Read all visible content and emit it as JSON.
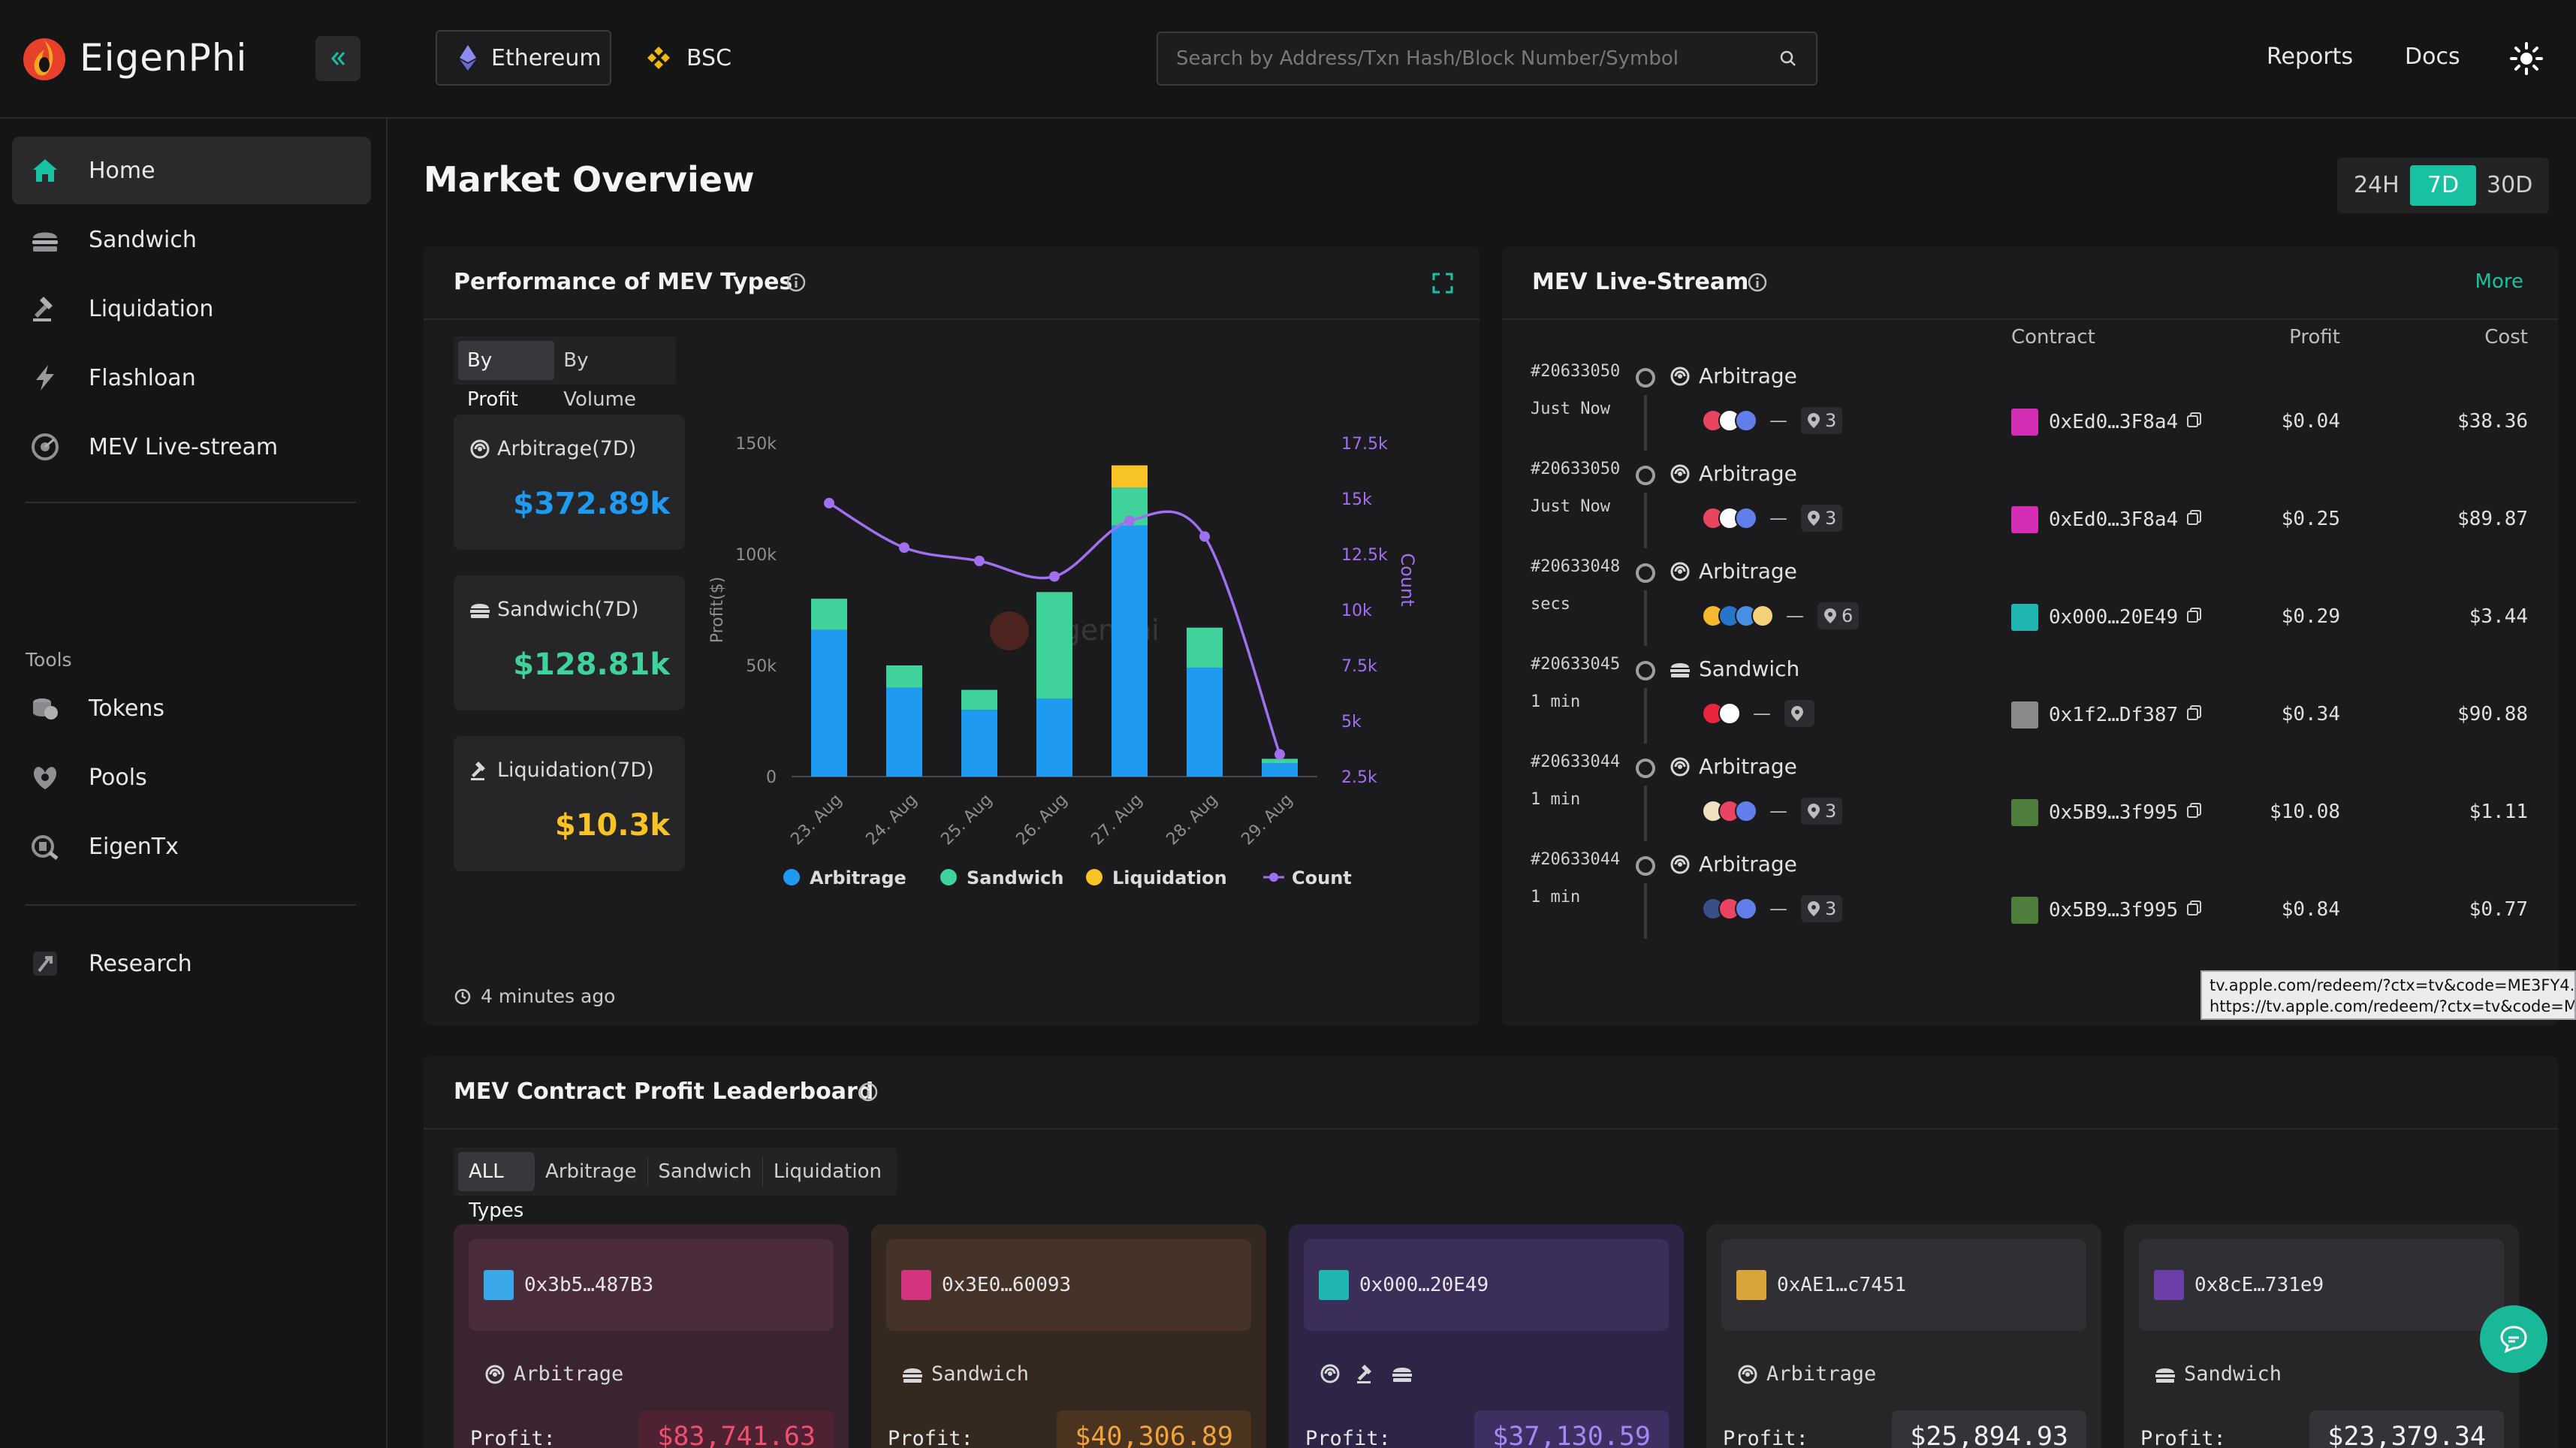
{
  "brand": {
    "name": "EigenPhi"
  },
  "header": {
    "chains": [
      {
        "label": "Ethereum"
      },
      {
        "label": "BSC"
      }
    ],
    "search_placeholder": "Search by Address/Txn Hash/Block Number/Symbol",
    "links": {
      "reports": "Reports",
      "docs": "Docs"
    }
  },
  "sidebar": {
    "items": [
      {
        "label": "Home",
        "icon": "home-icon"
      },
      {
        "label": "Sandwich",
        "icon": "sandwich-icon"
      },
      {
        "label": "Liquidation",
        "icon": "gavel-icon"
      },
      {
        "label": "Flashloan",
        "icon": "flash-icon"
      },
      {
        "label": "MEV Live-stream",
        "icon": "radar-icon"
      }
    ],
    "tools_label": "Tools",
    "tools": [
      {
        "label": "Tokens",
        "icon": "coins-icon"
      },
      {
        "label": "Pools",
        "icon": "pools-icon"
      },
      {
        "label": "EigenTx",
        "icon": "eigentx-icon"
      }
    ],
    "research": {
      "label": "Research",
      "icon": "research-icon"
    }
  },
  "main": {
    "title": "Market Overview",
    "ranges": [
      "24H",
      "7D",
      "30D"
    ],
    "active_range": "7D"
  },
  "performance": {
    "title": "Performance of MEV Types",
    "tabs": [
      "By Profit",
      "By Volume"
    ],
    "stats": [
      {
        "label": "Arbitrage(7D)",
        "value": "$372.89k",
        "color": "#1e9bf0"
      },
      {
        "label": "Sandwich(7D)",
        "value": "$128.81k",
        "color": "#3fd39b"
      },
      {
        "label": "Liquidation(7D)",
        "value": "$10.3k",
        "color": "#f7c325"
      }
    ],
    "updated": "4 minutes ago"
  },
  "chart_data": {
    "type": "bar",
    "stacked": true,
    "categories": [
      "23. Aug",
      "24. Aug",
      "25. Aug",
      "26. Aug",
      "27. Aug",
      "28. Aug",
      "29. Aug"
    ],
    "ylabel": "Profit($)",
    "ylim": [
      0,
      150000
    ],
    "yticks": [
      "0",
      "50k",
      "100k",
      "150k"
    ],
    "y2label": "Count",
    "y2lim": [
      2500,
      17500
    ],
    "y2ticks": [
      "2.5k",
      "5k",
      "7.5k",
      "10k",
      "12.5k",
      "15k",
      "17.5k"
    ],
    "series": [
      {
        "name": "Arbitrage",
        "color": "#1e9bf0",
        "values": [
          66000,
          40000,
          30000,
          35000,
          113000,
          49000,
          6000
        ]
      },
      {
        "name": "Sandwich",
        "color": "#3fd39b",
        "values": [
          14000,
          10000,
          9000,
          48000,
          17000,
          18000,
          2000
        ]
      },
      {
        "name": "Liquidation",
        "color": "#f7c325",
        "values": [
          0,
          0,
          0,
          0,
          10000,
          0,
          0
        ]
      },
      {
        "name": "Count",
        "color": "#a070f0",
        "axis": "right",
        "type": "line",
        "values": [
          14800,
          12800,
          12200,
          11500,
          14000,
          13300,
          3500
        ]
      }
    ],
    "legend": "bottom",
    "watermark": "EigenPhi"
  },
  "livestream": {
    "title": "MEV Live-Stream",
    "more": "More",
    "columns": {
      "contract": "Contract",
      "profit": "Profit",
      "cost": "Cost"
    },
    "rows": [
      {
        "block": "#20633050",
        "time": "Just Now",
        "type": "Arbitrage",
        "tokens": [
          "#e94560",
          "#ffffff",
          "#627eea"
        ],
        "pools": "3",
        "contract": "0xEd0…3F8a4",
        "avatar": "#d42db5",
        "profit": "$0.04",
        "cost": "$38.36"
      },
      {
        "block": "#20633050",
        "time": "Just Now",
        "type": "Arbitrage",
        "tokens": [
          "#e94560",
          "#ffffff",
          "#627eea"
        ],
        "pools": "3",
        "contract": "0xEd0…3F8a4",
        "avatar": "#d42db5",
        "profit": "$0.25",
        "cost": "$89.87"
      },
      {
        "block": "#20633048",
        "time": "secs",
        "type": "Arbitrage",
        "tokens": [
          "#f5b82e",
          "#2775ca",
          "#4a90e2",
          "#f5d17a"
        ],
        "pools": "6",
        "contract": "0x000…20E49",
        "avatar": "#1fb5b0",
        "profit": "$0.29",
        "cost": "$3.44"
      },
      {
        "block": "#20633045",
        "time": "1 min",
        "type": "Sandwich",
        "tokens": [
          "#e9243c",
          "#ffffff"
        ],
        "pools": "",
        "contract": "0x1f2…Df387",
        "avatar": "#8a8a8a",
        "profit": "$0.34",
        "cost": "$90.88"
      },
      {
        "block": "#20633044",
        "time": "1 min",
        "type": "Arbitrage",
        "tokens": [
          "#f0e0c0",
          "#e94560",
          "#627eea"
        ],
        "pools": "3",
        "contract": "0x5B9…3f995",
        "avatar": "#4f7d3c",
        "profit": "$10.08",
        "cost": "$1.11"
      },
      {
        "block": "#20633044",
        "time": "1 min",
        "type": "Arbitrage",
        "tokens": [
          "#3a4e8a",
          "#e94560",
          "#627eea"
        ],
        "pools": "3",
        "contract": "0x5B9…3f995",
        "avatar": "#4f7d3c",
        "profit": "$0.84",
        "cost": "$0.77"
      }
    ]
  },
  "tooltip": {
    "line1": "tv.apple.com/redeem/?ctx=tv&code=ME3FY4...",
    "line2": "https://tv.apple.com/redeem/?ctx=tv&code=M..."
  },
  "leaderboard": {
    "title": "MEV Contract Profit Leaderboard",
    "tabs": [
      "ALL Types",
      "Arbitrage",
      "Sandwich",
      "Liquidation"
    ],
    "profit_label": "Profit:",
    "items": [
      {
        "address": "0x3b5…487B3",
        "type": "Arbitrage",
        "profit": "$83,741.63",
        "bg": "#3a2430",
        "head": "#4a2c3a",
        "val_bg": "#4e2233",
        "val_color": "#f0506e"
      },
      {
        "address": "0x3E0…60093",
        "type": "Sandwich",
        "profit": "$40,306.89",
        "bg": "#35281f",
        "head": "#453329",
        "val_bg": "#4a3420",
        "val_color": "#f2a23a"
      },
      {
        "address": "0x000…20E49",
        "type": "",
        "profit": "$37,130.59",
        "bg": "#2e2446",
        "head": "#3b2f5a",
        "val_bg": "#3e2f62",
        "val_color": "#a887f5"
      },
      {
        "address": "0xAE1…c7451",
        "type": "Arbitrage",
        "profit": "$25,894.93",
        "bg": "#262629",
        "head": "#303034",
        "val_bg": "#343438",
        "val_color": "#f0f0f2"
      },
      {
        "address": "0x8cE…731e9",
        "type": "Sandwich",
        "profit": "$23,379.34",
        "bg": "#262629",
        "head": "#303034",
        "val_bg": "#343438",
        "val_color": "#f0f0f2"
      }
    ]
  }
}
